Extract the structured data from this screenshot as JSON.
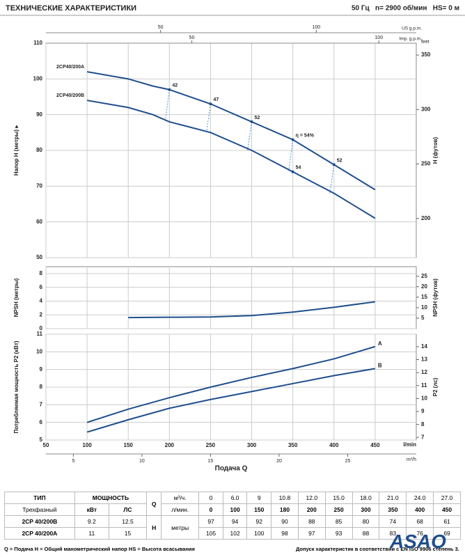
{
  "header": {
    "title": "ТЕХНИЧЕСКИЕ ХАРАКТЕРИСТИКИ",
    "conditions": "50 Гц   n= 2900 об/мин   HS= 0 м"
  },
  "chart_data": [
    {
      "type": "line",
      "ylabel": "Напор H (метры) ▸",
      "y2label": "H (футов)",
      "y2unit": "feet",
      "xlim": [
        50,
        500
      ],
      "xticks": [
        50,
        100,
        150,
        200,
        250,
        300,
        350,
        400,
        450
      ],
      "ylim": [
        50,
        110
      ],
      "yticks": [
        50,
        60,
        70,
        80,
        90,
        100,
        110
      ],
      "y2lim": [
        164.04,
        360.89
      ],
      "y2ticks": [
        200,
        250,
        300,
        350
      ],
      "grid": true,
      "top_axes": [
        {
          "label": "US g.p.m.",
          "xlim": [
            13.2,
            132.1
          ],
          "xticks": [
            50,
            100
          ]
        },
        {
          "label": "Imp. g.p.m.",
          "xlim": [
            11,
            110
          ],
          "xticks": [
            50,
            100
          ]
        }
      ],
      "x": [
        100,
        150,
        180,
        200,
        250,
        300,
        350,
        400,
        450
      ],
      "series": [
        {
          "name": "2CP40/200A",
          "color": "#1f4e8c",
          "values": [
            102,
            100,
            98,
            97,
            93,
            88,
            83,
            76,
            69
          ]
        },
        {
          "name": "2CP40/200B",
          "color": "#1f4e8c",
          "values": [
            94,
            92,
            90,
            88,
            85,
            80,
            74,
            68,
            61
          ]
        }
      ],
      "annotations": [
        {
          "text": "42",
          "x": 200,
          "y": 97
        },
        {
          "text": "47",
          "x": 250,
          "y": 93
        },
        {
          "text": "52",
          "x": 300,
          "y": 88
        },
        {
          "text": "η = 54%",
          "x": 350,
          "y": 83
        },
        {
          "text": "54",
          "x": 350,
          "y": 74
        },
        {
          "text": "52",
          "x": 400,
          "y": 76
        }
      ]
    },
    {
      "type": "line",
      "ylabel": "NPSH (метры)",
      "y2label": "NPSH (футов)",
      "xlim": [
        50,
        500
      ],
      "xticks": [
        50,
        100,
        150,
        200,
        250,
        300,
        350,
        400,
        450
      ],
      "ylim": [
        0,
        9
      ],
      "yticks": [
        0,
        2,
        4,
        6,
        8
      ],
      "y2lim": [
        0,
        29.53
      ],
      "y2ticks": [
        5,
        10,
        15,
        20,
        25
      ],
      "grid": true,
      "x": [
        150,
        200,
        250,
        300,
        350,
        400,
        450
      ],
      "series": [
        {
          "color": "#1f4e8c",
          "values": [
            1.6,
            1.65,
            1.7,
            1.9,
            2.4,
            3.1,
            3.9
          ]
        }
      ]
    },
    {
      "type": "line",
      "ylabel": "Потребляемая мощность P2 (кВт)",
      "y2label": "P2 (лс)",
      "xlim": [
        50,
        500
      ],
      "xticks": [
        50,
        100,
        150,
        200,
        250,
        300,
        350,
        400,
        450
      ],
      "xunit": "l/min",
      "xlabel": "Подача Q",
      "ylim": [
        5,
        11
      ],
      "yticks": [
        5,
        6,
        7,
        8,
        9,
        10,
        11
      ],
      "y2lim": [
        6.8,
        14.96
      ],
      "y2ticks": [
        7,
        8,
        9,
        10,
        11,
        12,
        13,
        14
      ],
      "grid": true,
      "bottom_axis": {
        "label": "m³/h",
        "xlim": [
          3,
          30
        ],
        "xticks": [
          5,
          10,
          15,
          20,
          25
        ]
      },
      "x": [
        100,
        150,
        200,
        250,
        300,
        350,
        400,
        450
      ],
      "series": [
        {
          "name": "A",
          "color": "#1f4e8c",
          "values": [
            6.0,
            6.75,
            7.4,
            8.0,
            8.55,
            9.05,
            9.6,
            10.3
          ]
        },
        {
          "name": "B",
          "color": "#1f4e8c",
          "values": [
            5.45,
            6.15,
            6.8,
            7.3,
            7.75,
            8.2,
            8.65,
            9.05
          ]
        }
      ]
    }
  ],
  "table": {
    "type_label": "ТИП",
    "phase": "Трехфазный",
    "power_label": "МОЩНОСТЬ",
    "kw": "кВт",
    "hp": "ЛС",
    "q": "Q",
    "m3h": "м³/ч.",
    "lmin": "л/мин.",
    "h": "H",
    "h_unit": "метры",
    "q_m3h": [
      "0",
      "6.0",
      "9",
      "10.8",
      "12.0",
      "15.0",
      "18.0",
      "21.0",
      "24.0",
      "27.0"
    ],
    "q_lmin": [
      "0",
      "100",
      "150",
      "180",
      "200",
      "250",
      "300",
      "350",
      "400",
      "450"
    ],
    "models": [
      {
        "name": "2CP 40/200B",
        "kw": "9.2",
        "hp": "12.5",
        "head": [
          "97",
          "94",
          "92",
          "90",
          "88",
          "85",
          "80",
          "74",
          "68",
          "61"
        ]
      },
      {
        "name": "2CP 40/200A",
        "kw": "11",
        "hp": "15",
        "head": [
          "105",
          "102",
          "100",
          "98",
          "97",
          "93",
          "88",
          "83",
          "76",
          "69"
        ]
      }
    ]
  },
  "footer": {
    "legend": "Q = Подача   H = Общий манометрический напор   HS = Высота всасывания",
    "tolerance": "Допуск характеристик в соответствии с EN ISO 9906 степень 3."
  },
  "logo": "ASAO"
}
